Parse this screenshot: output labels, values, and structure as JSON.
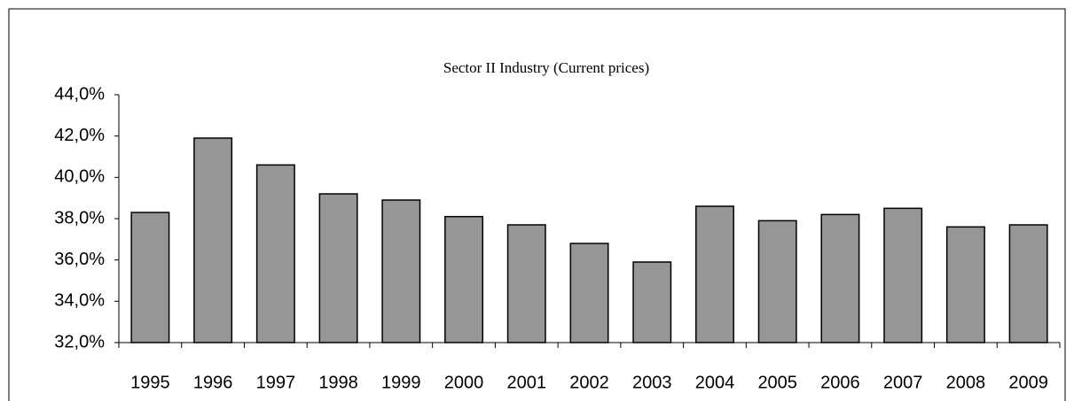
{
  "chart_data": {
    "type": "bar",
    "title": "Sector II Industry (Current prices)",
    "categories": [
      "1995",
      "1996",
      "1997",
      "1998",
      "1999",
      "2000",
      "2001",
      "2002",
      "2003",
      "2004",
      "2005",
      "2006",
      "2007",
      "2008",
      "2009"
    ],
    "values": [
      38.3,
      41.9,
      40.6,
      39.2,
      38.9,
      38.1,
      37.7,
      36.8,
      35.9,
      38.6,
      37.9,
      38.2,
      38.5,
      37.6,
      37.7
    ],
    "color": "#969696",
    "ylim": [
      32,
      44
    ],
    "yticks": [
      {
        "value": 32,
        "label": "32,0%"
      },
      {
        "value": 34,
        "label": "34,0%"
      },
      {
        "value": 36,
        "label": "36,0%"
      },
      {
        "value": 38,
        "label": "38,0%"
      },
      {
        "value": 40,
        "label": "40,0%"
      },
      {
        "value": 42,
        "label": "42,0%"
      },
      {
        "value": 44,
        "label": "44,0%"
      }
    ],
    "grid": false
  }
}
